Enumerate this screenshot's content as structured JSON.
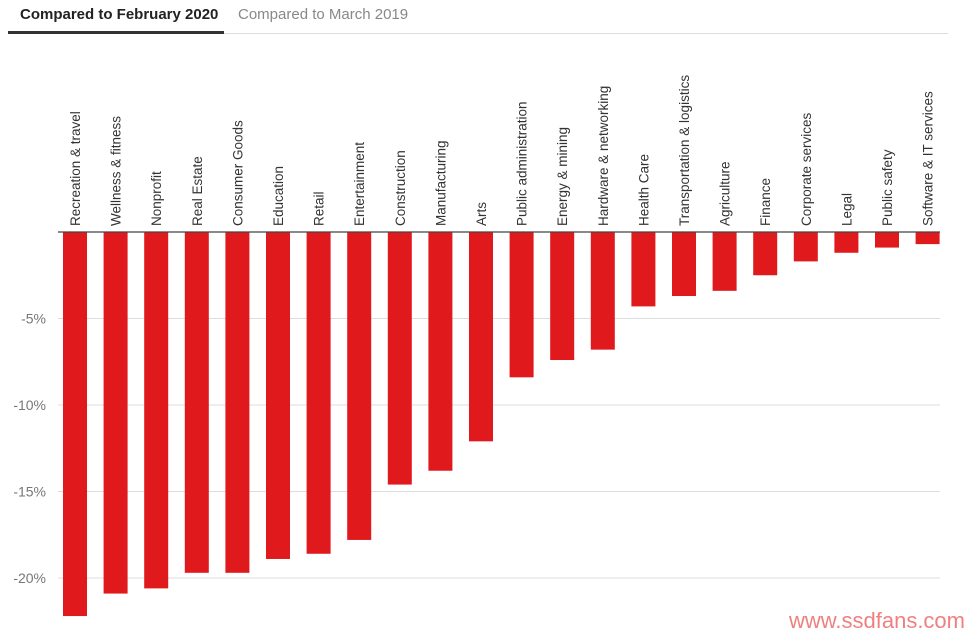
{
  "tabs": [
    {
      "label": "Compared to February 2020",
      "active": true
    },
    {
      "label": "Compared to March 2019",
      "active": false
    }
  ],
  "watermark": "www.ssdfans.com",
  "colors": {
    "bar": "#e0191d",
    "grid": "#dddddd",
    "zero_line": "#444444"
  },
  "chart_data": {
    "type": "bar",
    "categories": [
      "Recreation & travel",
      "Wellness & fitness",
      "Nonprofit",
      "Real Estate",
      "Consumer Goods",
      "Education",
      "Retail",
      "Entertainment",
      "Construction",
      "Manufacturing",
      "Arts",
      "Public administration",
      "Energy & mining",
      "Hardware & networking",
      "Health Care",
      "Transportation & logistics",
      "Agriculture",
      "Finance",
      "Corporate services",
      "Legal",
      "Public safety",
      "Software & IT services"
    ],
    "values": [
      -22.2,
      -20.9,
      -20.6,
      -19.7,
      -19.7,
      -18.9,
      -18.6,
      -17.8,
      -14.6,
      -13.8,
      -12.1,
      -8.4,
      -7.4,
      -6.8,
      -4.3,
      -3.7,
      -3.4,
      -2.5,
      -1.7,
      -1.2,
      -0.9,
      -0.7
    ],
    "yticks": [
      -5,
      -10,
      -15,
      -20
    ],
    "ytick_labels": [
      "-5%",
      "-10%",
      "-15%",
      "-20%"
    ],
    "ylim": [
      -22.5,
      0
    ],
    "grid": true,
    "title": "",
    "xlabel": "",
    "ylabel": ""
  }
}
